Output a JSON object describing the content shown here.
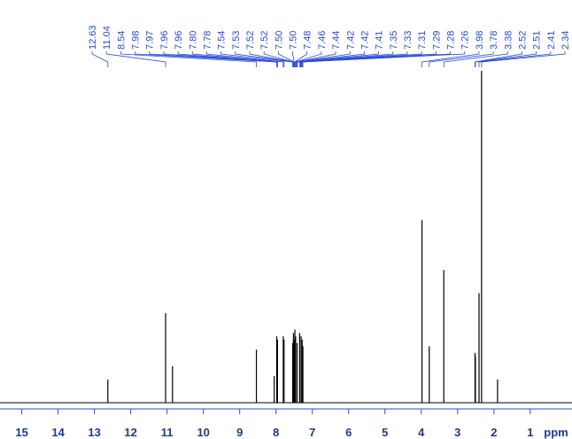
{
  "chart_data": {
    "type": "spectrum",
    "xlabel": "ppm",
    "xlim": [
      15.6,
      -0.15
    ],
    "ylim": [
      0,
      100
    ],
    "xticks": [
      15,
      14,
      13,
      12,
      11,
      10,
      9,
      8,
      7,
      6,
      5,
      4,
      3,
      2,
      1
    ],
    "color": "#000000",
    "label_color": "#2a4bd7",
    "x": [
      12.63,
      11.04,
      10.85,
      8.54,
      8.05,
      7.98,
      7.96,
      7.8,
      7.78,
      7.54,
      7.52,
      7.5,
      7.48,
      7.46,
      7.42,
      7.35,
      7.31,
      7.28,
      7.26,
      3.98,
      3.78,
      3.38,
      2.52,
      2.51,
      2.41,
      2.34,
      1.9
    ],
    "values": [
      7,
      27,
      11,
      16,
      8,
      20,
      19,
      20,
      19,
      18,
      21,
      19,
      22,
      20,
      18,
      21,
      20,
      19,
      17,
      55,
      17,
      40,
      15,
      14,
      33,
      100,
      7
    ],
    "peak_labels": [
      12.63,
      11.04,
      8.54,
      7.98,
      7.97,
      7.96,
      7.96,
      {
        "value": 7.8,
        "label": "7.80"
      },
      7.78,
      7.54,
      7.53,
      7.52,
      7.52,
      {
        "value": 7.5,
        "label": "7.50"
      },
      {
        "value": 7.5,
        "label": "7.50"
      },
      7.48,
      7.46,
      7.44,
      7.42,
      7.42,
      7.41,
      7.35,
      7.33,
      7.31,
      7.29,
      7.28,
      7.26,
      3.98,
      3.78,
      3.38,
      2.52,
      2.51,
      2.41,
      2.34
    ]
  }
}
